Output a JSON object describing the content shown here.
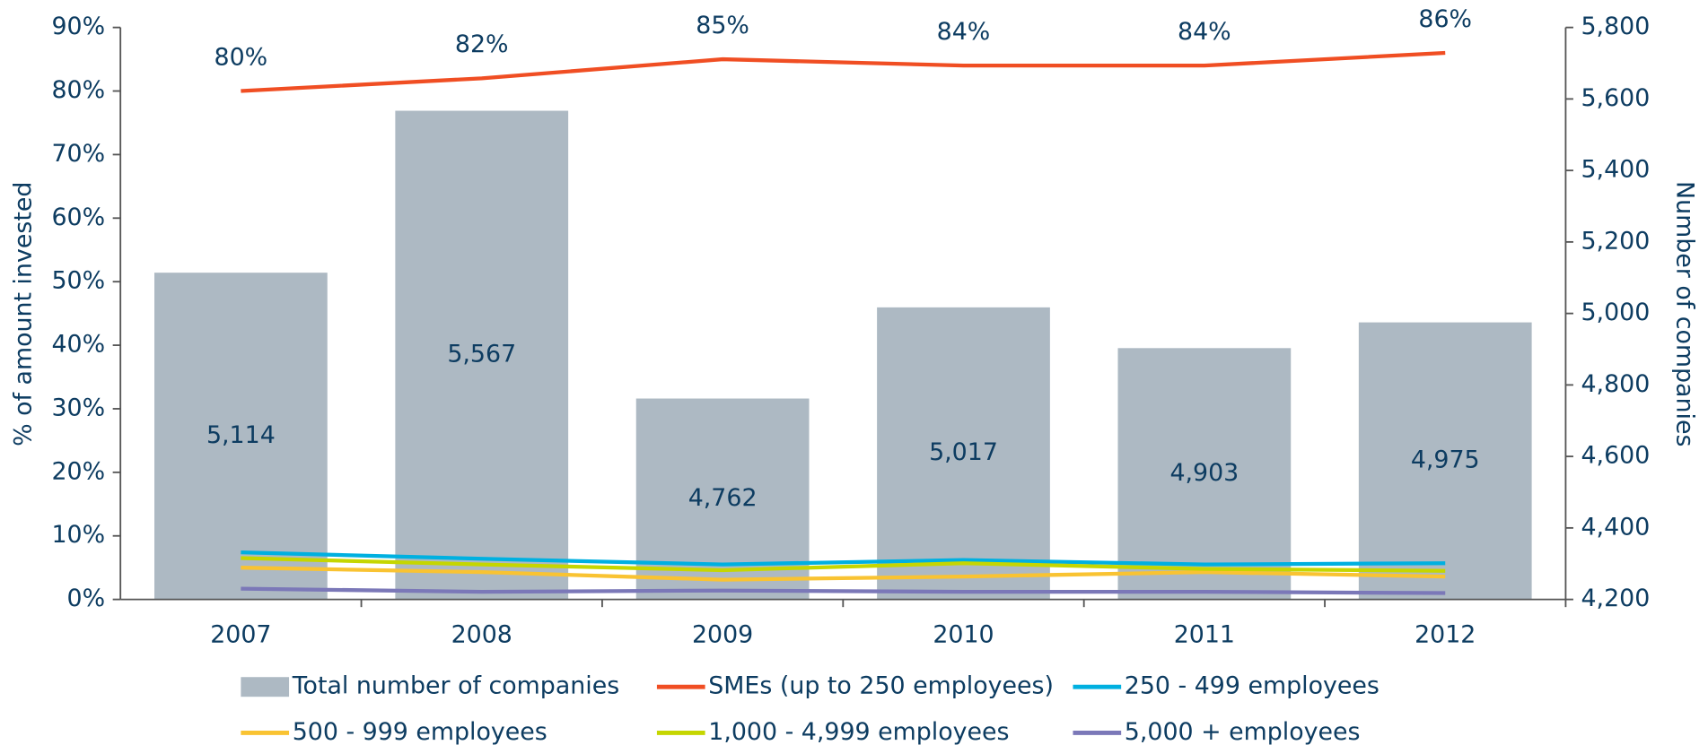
{
  "chart_data": {
    "type": "bar",
    "categories": [
      "2007",
      "2008",
      "2009",
      "2010",
      "2011",
      "2012"
    ],
    "ylabel": "% of amount invested",
    "y2label": "Number of companies",
    "ylim": [
      0,
      90
    ],
    "yticks": [
      {
        "value": 0,
        "label": "0%"
      },
      {
        "value": 10,
        "label": "10%"
      },
      {
        "value": 20,
        "label": "20%"
      },
      {
        "value": 30,
        "label": "30%"
      },
      {
        "value": 40,
        "label": "40%"
      },
      {
        "value": 50,
        "label": "50%"
      },
      {
        "value": 60,
        "label": "60%"
      },
      {
        "value": 70,
        "label": "70%"
      },
      {
        "value": 80,
        "label": "80%"
      },
      {
        "value": 90,
        "label": "90%"
      }
    ],
    "y2lim": [
      4200,
      5800
    ],
    "y2ticks": [
      {
        "value": 4200,
        "label": "4,200"
      },
      {
        "value": 4400,
        "label": "4,400"
      },
      {
        "value": 4600,
        "label": "4,600"
      },
      {
        "value": 4800,
        "label": "4,800"
      },
      {
        "value": 5000,
        "label": "5,000"
      },
      {
        "value": 5200,
        "label": "5,200"
      },
      {
        "value": 5400,
        "label": "5,400"
      },
      {
        "value": 5600,
        "label": "5,600"
      },
      {
        "value": 5800,
        "label": "5,800"
      }
    ],
    "legend": "bottom",
    "series": [
      {
        "name": "Total number of companies",
        "type": "bar",
        "axis": "y2",
        "color": "#adb9c3",
        "values": [
          5114,
          5567,
          4762,
          5017,
          4903,
          4975
        ],
        "value_labels": [
          "5,114",
          "5,567",
          "4,762",
          "5,017",
          "4,903",
          "4,975"
        ]
      },
      {
        "name": "SMEs (up to 250 employees)",
        "type": "line",
        "color": "#f04e23",
        "values": [
          80,
          82,
          85,
          84,
          84,
          86
        ],
        "value_labels": [
          "80%",
          "82%",
          "85%",
          "84%",
          "84%",
          "86%"
        ]
      },
      {
        "name": "250 - 499 employees",
        "type": "line",
        "color": "#00b0e0",
        "values": [
          7.4,
          6.4,
          5.5,
          6.2,
          5.5,
          5.7
        ]
      },
      {
        "name": "500 - 999 employees",
        "type": "line",
        "color": "#f9c332",
        "values": [
          5.0,
          4.3,
          3.1,
          3.6,
          4.3,
          3.6
        ]
      },
      {
        "name": "1,000 - 4,999 employees",
        "type": "line",
        "color": "#c5d600",
        "values": [
          6.5,
          5.5,
          4.6,
          5.7,
          4.8,
          4.5
        ]
      },
      {
        "name": "5,000 + employees",
        "type": "line",
        "color": "#7b78b8",
        "values": [
          1.7,
          1.2,
          1.4,
          1.2,
          1.2,
          1.0
        ]
      }
    ]
  }
}
